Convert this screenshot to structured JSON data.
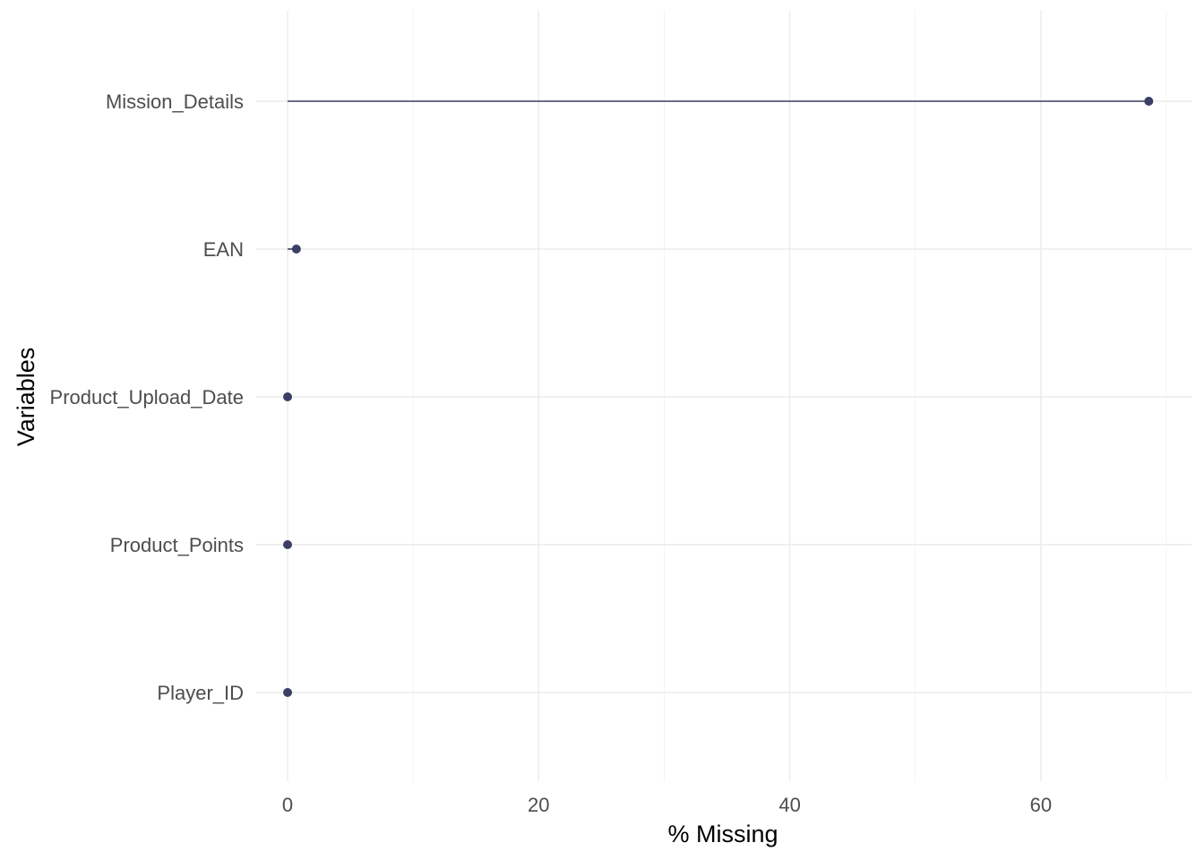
{
  "chart_data": {
    "type": "lollipop",
    "title": "",
    "xlabel": "% Missing",
    "ylabel": "Variables",
    "xlim": [
      -2.5,
      72
    ],
    "x_ticks": [
      0,
      20,
      40,
      60
    ],
    "grid": true,
    "legend": "none",
    "point_color": "#3b3f66",
    "categories": [
      "Mission_Details",
      "EAN",
      "Product_Upload_Date",
      "Product_Points",
      "Player_ID"
    ],
    "values": [
      68.6,
      0.7,
      0,
      0,
      0
    ]
  }
}
